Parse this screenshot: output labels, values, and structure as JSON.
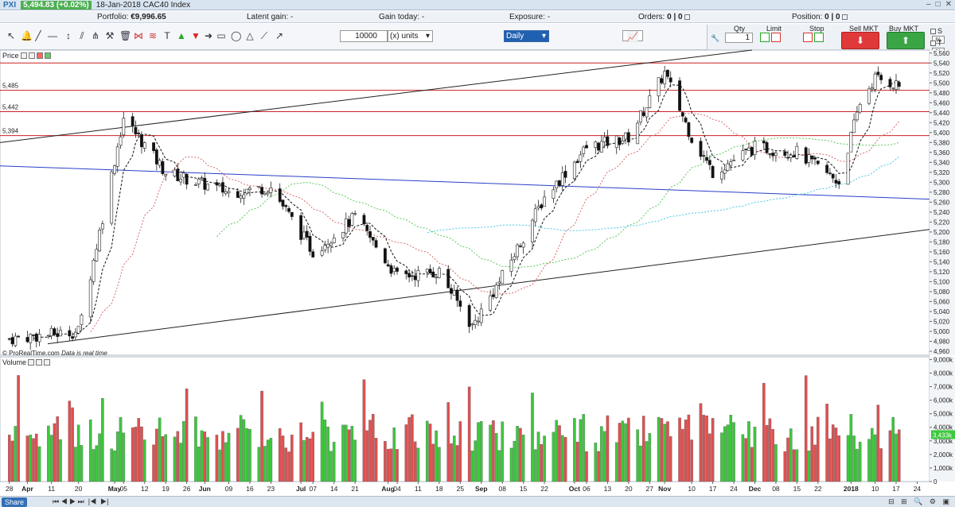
{
  "window": {
    "app_name": "PXI",
    "price_badge": "5,494.83 (+0.02%)",
    "title": "18-Jan-2018 CAC40 Index"
  },
  "status": {
    "portfolio_label": "Portfolio:",
    "portfolio_value": "€9,996.65",
    "latent_label": "Latent gain:",
    "latent_value": "-",
    "gain_label": "Gain today:",
    "gain_value": "-",
    "exposure_label": "Exposure:",
    "exposure_value": "-",
    "orders_label": "Orders:",
    "orders_value": "0 | 0",
    "position_label": "Position:",
    "position_value": "0 | 0"
  },
  "toolbar": {
    "quantity": "10000",
    "units": "(x) units",
    "period": "Daily"
  },
  "trade": {
    "qty_label": "Qty",
    "qty_value": "1",
    "limit_label": "Limit",
    "stop_label": "Stop",
    "sell_label": "Sell MKT",
    "buy_label": "Buy MKT",
    "s_label": "S",
    "t_label": "T",
    "s_pct": "%",
    "t_pct": "%"
  },
  "panels": {
    "price_label": "Price",
    "volume_label": "Volume",
    "credit": "© ProRealTime.com",
    "credit_note": "Data is real time"
  },
  "footer": {
    "share_label": "Share"
  },
  "colors": {
    "up": "#3cc83c",
    "down": "#e05050",
    "resistance": "#cc2222",
    "trend_blue": "#2a3fc8"
  },
  "chart_data": {
    "type": "candlestick",
    "price_axis_ticks": [
      4960,
      4980,
      5000,
      5020,
      5040,
      5060,
      5080,
      5100,
      5120,
      5140,
      5160,
      5180,
      5200,
      5220,
      5240,
      5260,
      5280,
      5300,
      5320,
      5340,
      5360,
      5380,
      5400,
      5420,
      5440,
      5460,
      5480,
      5500,
      5520,
      5540,
      5560
    ],
    "ylim": [
      4952,
      5566
    ],
    "horizontal_levels": [
      {
        "label": "5,485",
        "value": 5485
      },
      {
        "label": "5,442",
        "value": 5442
      },
      {
        "label": "5,394",
        "value": 5394
      }
    ],
    "top_level": 5540,
    "volume_axis_ticks": [
      "0",
      "1,000k",
      "2,000k",
      "3,000k",
      "4,000k",
      "5,000k",
      "6,000k",
      "7,000k",
      "8,000k",
      "9,000k"
    ],
    "volume_last_label": "3,433k",
    "volume_ylim": [
      0,
      9200
    ],
    "x_labels": [
      "28",
      "Apr",
      "11",
      "20",
      "May",
      "05",
      "12",
      "19",
      "26",
      "Jun",
      "09",
      "16",
      "23",
      "Jul",
      "07",
      "14",
      "21",
      "Aug",
      "04",
      "11",
      "18",
      "25",
      "Sep",
      "08",
      "15",
      "22",
      "Oct",
      "06",
      "13",
      "20",
      "27",
      "Nov",
      "10",
      "17",
      "24",
      "Dec",
      "08",
      "15",
      "22",
      "2018",
      "10",
      "17",
      "24"
    ],
    "x_label_months": [
      "Apr",
      "May",
      "Jun",
      "Jul",
      "Aug",
      "Sep",
      "Oct",
      "Nov",
      "Dec",
      "2018"
    ],
    "key_closes": [
      {
        "date": "2017-03-28",
        "close": 4985
      },
      {
        "date": "2017-04-20",
        "close": 5000
      },
      {
        "date": "2017-05-05",
        "close": 5430
      },
      {
        "date": "2017-05-19",
        "close": 5320
      },
      {
        "date": "2017-06-09",
        "close": 5280
      },
      {
        "date": "2017-06-23",
        "close": 5290
      },
      {
        "date": "2017-07-07",
        "close": 5160
      },
      {
        "date": "2017-07-21",
        "close": 5230
      },
      {
        "date": "2017-08-04",
        "close": 5110
      },
      {
        "date": "2017-08-18",
        "close": 5120
      },
      {
        "date": "2017-08-29",
        "close": 5010
      },
      {
        "date": "2017-09-08",
        "close": 5110
      },
      {
        "date": "2017-09-22",
        "close": 5270
      },
      {
        "date": "2017-10-06",
        "close": 5370
      },
      {
        "date": "2017-10-20",
        "close": 5390
      },
      {
        "date": "2017-11-01",
        "close": 5520
      },
      {
        "date": "2017-11-10",
        "close": 5390
      },
      {
        "date": "2017-11-17",
        "close": 5320
      },
      {
        "date": "2017-12-01",
        "close": 5370
      },
      {
        "date": "2017-12-15",
        "close": 5360
      },
      {
        "date": "2017-12-29",
        "close": 5300
      },
      {
        "date": "2018-01-05",
        "close": 5460
      },
      {
        "date": "2018-01-10",
        "close": 5510
      },
      {
        "date": "2018-01-18",
        "close": 5495
      }
    ]
  }
}
